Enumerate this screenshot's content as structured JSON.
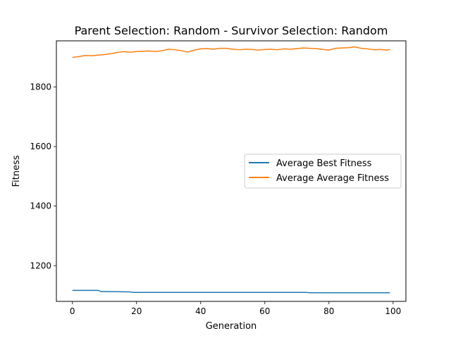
{
  "chart_data": {
    "type": "line",
    "title": "Parent Selection: Random - Survivor Selection: Random",
    "xlabel": "Generation",
    "ylabel": "Fitness",
    "xlim": [
      -5,
      104
    ],
    "ylim": [
      1080,
      1955
    ],
    "xticks": [
      0,
      20,
      40,
      60,
      80,
      100
    ],
    "yticks": [
      1200,
      1400,
      1600,
      1800
    ],
    "grid": false,
    "legend_position": "center-right",
    "series": [
      {
        "name": "Average Best Fitness",
        "color": "#1f77b4",
        "x": [
          0,
          8,
          9,
          18,
          19,
          73,
          74,
          99
        ],
        "y": [
          1117,
          1117,
          1113,
          1112,
          1110,
          1110,
          1109,
          1109
        ]
      },
      {
        "name": "Average Average Fitness",
        "color": "#ff7f0e",
        "x": [
          0,
          2,
          4,
          6,
          8,
          10,
          12,
          14,
          16,
          18,
          20,
          22,
          24,
          26,
          28,
          30,
          32,
          34,
          36,
          38,
          40,
          42,
          44,
          46,
          48,
          50,
          52,
          54,
          56,
          58,
          60,
          62,
          64,
          66,
          68,
          70,
          72,
          74,
          76,
          78,
          80,
          82,
          84,
          86,
          88,
          90,
          92,
          94,
          96,
          98,
          99
        ],
        "y": [
          1899,
          1902,
          1906,
          1905,
          1907,
          1909,
          1912,
          1916,
          1919,
          1917,
          1919,
          1920,
          1921,
          1919,
          1922,
          1927,
          1925,
          1922,
          1917,
          1924,
          1928,
          1929,
          1927,
          1930,
          1930,
          1927,
          1925,
          1927,
          1926,
          1924,
          1926,
          1927,
          1925,
          1928,
          1927,
          1929,
          1931,
          1930,
          1929,
          1926,
          1924,
          1930,
          1931,
          1932,
          1935,
          1930,
          1928,
          1925,
          1926,
          1924,
          1926
        ]
      }
    ]
  }
}
